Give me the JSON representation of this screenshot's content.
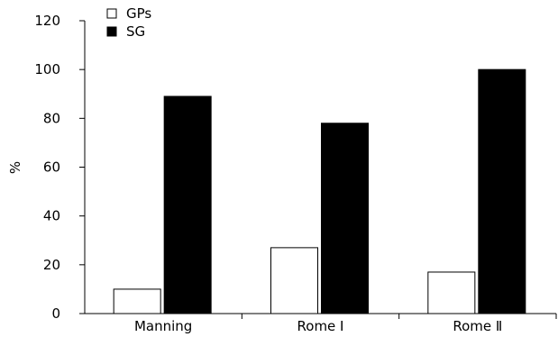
{
  "chart_data": {
    "type": "bar",
    "categories": [
      "Manning",
      "Rome Ⅰ",
      "Rome Ⅱ"
    ],
    "series": [
      {
        "name": "GPs",
        "values": [
          10,
          27,
          17
        ],
        "fill": "#ffffff",
        "stroke": "#000000"
      },
      {
        "name": "SG",
        "values": [
          89,
          78,
          100
        ],
        "fill": "#000000",
        "stroke": "#000000"
      }
    ],
    "title": "",
    "xlabel": "",
    "ylabel": "%",
    "ylim": [
      0,
      120
    ],
    "yticks": [
      0,
      20,
      40,
      60,
      80,
      100,
      120
    ],
    "grid": false,
    "legend_position": "top-left"
  }
}
